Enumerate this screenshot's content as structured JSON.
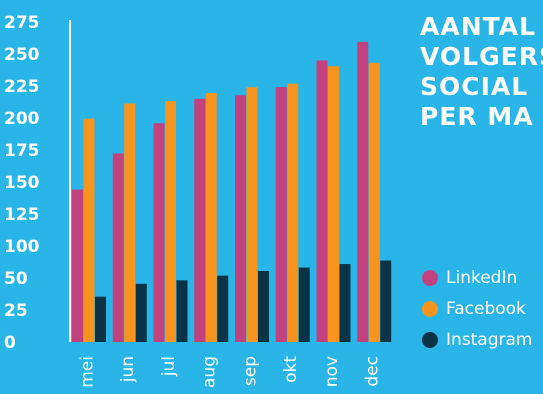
{
  "chart_data": {
    "type": "bar",
    "title_lines": [
      "AANTAL",
      "VOLGERS",
      "SOCIAL",
      "PER MA"
    ],
    "categories": [
      "mei",
      "jun",
      "jul",
      "aug",
      "sep",
      "okt",
      "nov",
      "dec"
    ],
    "series": [
      {
        "name": "LinkedIn",
        "color": "#c2417f",
        "values": [
          131,
          162,
          188,
          209,
          212,
          219,
          242,
          258
        ]
      },
      {
        "name": "Facebook",
        "color": "#f7941d",
        "values": [
          192,
          205,
          207,
          214,
          219,
          222,
          237,
          240
        ]
      },
      {
        "name": "Instagram",
        "color": "#0b3347",
        "values": [
          39,
          50,
          53,
          57,
          61,
          64,
          67,
          70
        ]
      }
    ],
    "y_ticks": [
      "275",
      "250",
      "225",
      "200",
      "175",
      "150",
      "125",
      "100",
      "50",
      "25",
      "0"
    ],
    "ylim": [
      0,
      275
    ],
    "legend_position": "right",
    "grid": false
  },
  "colors": {
    "background": "#29b5e8",
    "axis": "#ffffff",
    "text": "#ffffff"
  }
}
